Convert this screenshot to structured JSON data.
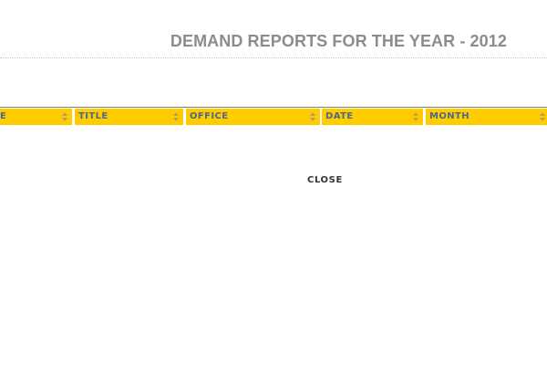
{
  "page": {
    "title": "DEMAND REPORTS FOR THE YEAR - 2012"
  },
  "table": {
    "columns": [
      {
        "label": "E"
      },
      {
        "label": "TITLE"
      },
      {
        "label": "OFFICE"
      },
      {
        "label": "DATE"
      },
      {
        "label": "MONTH"
      }
    ]
  },
  "actions": {
    "close_label": "CLOSE"
  },
  "colors": {
    "header_background": "#ffcc00",
    "header_text": "#4a6a8c",
    "title_text": "#8c8c8c"
  },
  "icons": {
    "sort": "sort-arrows-icon"
  }
}
